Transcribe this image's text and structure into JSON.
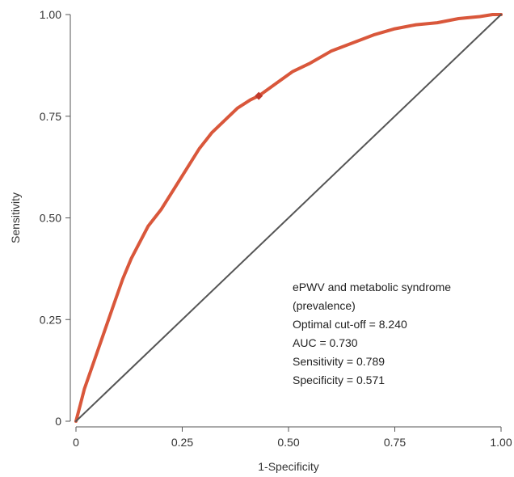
{
  "chart_data": {
    "type": "line",
    "xlabel": "1-Specificity",
    "ylabel": "Sensitivity",
    "xlim": [
      0,
      1
    ],
    "ylim": [
      0,
      1
    ],
    "x_ticks": [
      0,
      0.25,
      0.5,
      0.75,
      1
    ],
    "x_tick_labels": [
      "0",
      "0.25",
      "0.50",
      "0.75",
      "1.00"
    ],
    "y_ticks": [
      0,
      0.25,
      0.5,
      0.75,
      1
    ],
    "y_tick_labels": [
      "0",
      "0.25",
      "0.50",
      "0.75",
      "1.00"
    ],
    "grid": false,
    "series": [
      {
        "color": "#d9573b",
        "x": [
          0,
          0.01,
          0.02,
          0.03,
          0.05,
          0.07,
          0.09,
          0.11,
          0.13,
          0.15,
          0.17,
          0.2,
          0.23,
          0.26,
          0.29,
          0.32,
          0.35,
          0.38,
          0.41,
          0.43,
          0.47,
          0.51,
          0.55,
          0.6,
          0.65,
          0.7,
          0.75,
          0.8,
          0.85,
          0.9,
          0.95,
          0.98,
          1
        ],
        "y": [
          0,
          0.04,
          0.08,
          0.11,
          0.17,
          0.23,
          0.29,
          0.35,
          0.4,
          0.44,
          0.48,
          0.52,
          0.57,
          0.62,
          0.67,
          0.71,
          0.74,
          0.77,
          0.79,
          0.8,
          0.83,
          0.86,
          0.88,
          0.91,
          0.93,
          0.95,
          0.965,
          0.975,
          0.98,
          0.99,
          0.995,
          1.0,
          1.0
        ]
      },
      {
        "color": "#555555",
        "x": [
          0,
          1
        ],
        "y": [
          0,
          1
        ]
      }
    ],
    "optimal_point": {
      "x": 0.43,
      "y": 0.8,
      "color": "#c0392b"
    },
    "annotations": [
      "ePWV and metabolic syndrome",
      "(prevalence)",
      "Optimal cut-off = 8.240",
      "AUC = 0.730",
      "Sensitivity = 0.789",
      "Specificity = 0.571"
    ]
  }
}
